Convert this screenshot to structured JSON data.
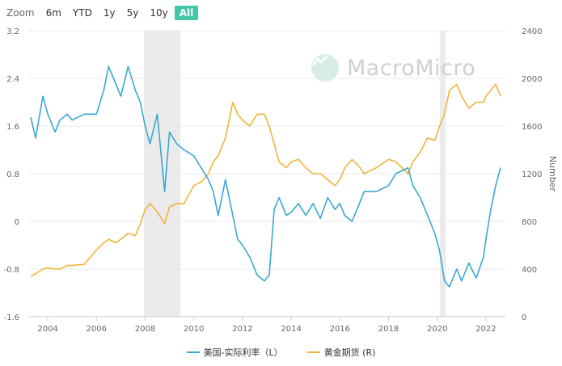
{
  "zoom": {
    "label": "Zoom",
    "buttons": [
      "6m",
      "YTD",
      "1y",
      "5y",
      "10y",
      "All"
    ],
    "active": "All"
  },
  "watermark": {
    "text": "MacroMicro"
  },
  "colors": {
    "real_rate": "#3aa8d2",
    "gold": "#f0b43a",
    "recession": "#ebebeb",
    "grid": "#e8e8e8",
    "active_button": "#43c8a9"
  },
  "chart_data": {
    "type": "line",
    "x_ticks": [
      2004,
      2006,
      2008,
      2010,
      2012,
      2014,
      2016,
      2018,
      2020,
      2022
    ],
    "xlim": [
      2003.2,
      2022.8
    ],
    "left_axis": {
      "ticks": [
        "3.2",
        "2.4",
        "1.6",
        "0.8",
        "0",
        "-0.8",
        "-1.6"
      ],
      "ylim": [
        -1.6,
        3.2
      ]
    },
    "right_axis": {
      "title": "Number",
      "ticks": [
        "2400",
        "2000",
        "1600",
        "1200",
        "800",
        "400",
        "0"
      ],
      "ylim": [
        0,
        2400
      ]
    },
    "shaded_periods": [
      [
        2007.95,
        2009.45
      ],
      [
        2020.1,
        2020.35
      ]
    ],
    "legend": [
      "美国-实际利率（L）",
      "黄金期货 (R)"
    ],
    "series": [
      {
        "name": "美国-实际利率（L）",
        "axis": "left",
        "x": [
          2003.3,
          2003.5,
          2003.8,
          2004.0,
          2004.3,
          2004.5,
          2004.8,
          2005.0,
          2005.5,
          2006.0,
          2006.3,
          2006.5,
          2006.8,
          2007.0,
          2007.3,
          2007.6,
          2007.8,
          2008.0,
          2008.2,
          2008.5,
          2008.8,
          2009.0,
          2009.3,
          2009.6,
          2010.0,
          2010.3,
          2010.6,
          2010.8,
          2011.0,
          2011.3,
          2011.6,
          2011.8,
          2012.0,
          2012.3,
          2012.6,
          2012.9,
          2013.1,
          2013.3,
          2013.5,
          2013.8,
          2014.0,
          2014.3,
          2014.6,
          2014.9,
          2015.2,
          2015.5,
          2015.8,
          2016.0,
          2016.2,
          2016.5,
          2016.8,
          2017.0,
          2017.5,
          2018.0,
          2018.3,
          2018.8,
          2019.0,
          2019.3,
          2019.6,
          2019.9,
          2020.1,
          2020.3,
          2020.5,
          2020.8,
          2021.0,
          2021.3,
          2021.6,
          2021.9,
          2022.0,
          2022.2,
          2022.4,
          2022.6
        ],
        "y": [
          1.75,
          1.4,
          2.1,
          1.8,
          1.5,
          1.7,
          1.8,
          1.7,
          1.8,
          1.8,
          2.2,
          2.6,
          2.3,
          2.1,
          2.6,
          2.2,
          2.0,
          1.6,
          1.3,
          1.8,
          0.5,
          1.5,
          1.3,
          1.2,
          1.1,
          0.9,
          0.7,
          0.5,
          0.1,
          0.7,
          0.1,
          -0.3,
          -0.4,
          -0.6,
          -0.9,
          -1.0,
          -0.9,
          0.2,
          0.4,
          0.1,
          0.15,
          0.3,
          0.1,
          0.3,
          0.05,
          0.4,
          0.2,
          0.3,
          0.1,
          0.0,
          0.3,
          0.5,
          0.5,
          0.6,
          0.8,
          0.9,
          0.6,
          0.4,
          0.1,
          -0.2,
          -0.5,
          -1.0,
          -1.1,
          -0.8,
          -1.0,
          -0.7,
          -0.95,
          -0.6,
          -0.3,
          0.2,
          0.6,
          0.9
        ]
      },
      {
        "name": "黄金期货 (R)",
        "axis": "right",
        "x": [
          2003.3,
          2003.5,
          2003.8,
          2004.0,
          2004.3,
          2004.5,
          2004.8,
          2005.0,
          2005.5,
          2006.0,
          2006.3,
          2006.5,
          2006.8,
          2007.0,
          2007.3,
          2007.6,
          2007.8,
          2008.0,
          2008.2,
          2008.5,
          2008.8,
          2009.0,
          2009.3,
          2009.6,
          2010.0,
          2010.3,
          2010.6,
          2010.8,
          2011.0,
          2011.3,
          2011.6,
          2011.8,
          2012.0,
          2012.3,
          2012.6,
          2012.9,
          2013.1,
          2013.3,
          2013.5,
          2013.8,
          2014.0,
          2014.3,
          2014.6,
          2014.9,
          2015.2,
          2015.5,
          2015.8,
          2016.0,
          2016.2,
          2016.5,
          2016.8,
          2017.0,
          2017.5,
          2018.0,
          2018.3,
          2018.8,
          2019.0,
          2019.3,
          2019.6,
          2019.9,
          2020.1,
          2020.3,
          2020.5,
          2020.8,
          2021.0,
          2021.3,
          2021.6,
          2021.9,
          2022.0,
          2022.2,
          2022.4,
          2022.6
        ],
        "y": [
          340,
          360,
          400,
          410,
          400,
          400,
          430,
          430,
          440,
          560,
          620,
          650,
          620,
          650,
          700,
          680,
          780,
          900,
          950,
          880,
          780,
          920,
          950,
          950,
          1100,
          1130,
          1200,
          1300,
          1350,
          1500,
          1800,
          1700,
          1650,
          1600,
          1700,
          1700,
          1600,
          1450,
          1300,
          1250,
          1300,
          1320,
          1250,
          1200,
          1200,
          1150,
          1100,
          1150,
          1250,
          1320,
          1260,
          1200,
          1250,
          1320,
          1300,
          1200,
          1300,
          1380,
          1500,
          1480,
          1600,
          1700,
          1900,
          1950,
          1850,
          1750,
          1800,
          1800,
          1850,
          1900,
          1950,
          1850
        ]
      }
    ]
  }
}
